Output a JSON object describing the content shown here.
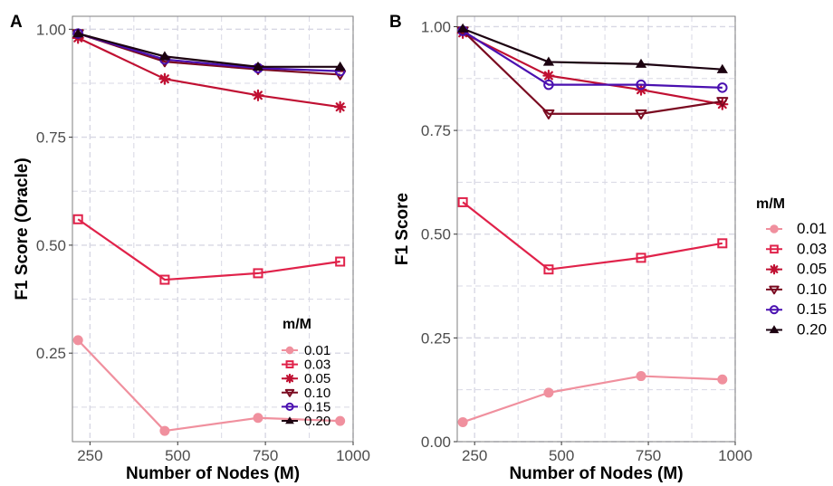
{
  "colors": {
    "0.01": "#f0909e",
    "0.03": "#e0224a",
    "0.05": "#c01032",
    "0.10": "#7a0a20",
    "0.15": "#4a10b0",
    "0.20": "#1c0210",
    "grid": "#d8d8e4",
    "panel_border": "#7f7f7f"
  },
  "chart_data": [
    {
      "type": "line",
      "panel_label": "A",
      "xlabel": "Number of Nodes (M)",
      "ylabel": "F1 Score (Oracle)",
      "xlim": [
        200,
        1000
      ],
      "ylim": [
        0.045,
        1.03
      ],
      "x_ticks": [
        250,
        500,
        750,
        1000
      ],
      "x_tick_labels": [
        "250",
        "500",
        "750",
        "1000"
      ],
      "y_ticks": [
        0.25,
        0.5,
        0.75,
        1.0
      ],
      "y_tick_labels": [
        "0.25",
        "0.50",
        "0.75",
        "1.00"
      ],
      "grid": true,
      "legend_title": "m/M",
      "legend_position": "inside-bottom-right",
      "x": [
        216,
        463,
        729,
        963
      ],
      "series": [
        {
          "name": "0.01",
          "marker": "circle",
          "values": [
            0.28,
            0.07,
            0.1,
            0.093
          ]
        },
        {
          "name": "0.03",
          "marker": "square",
          "values": [
            0.56,
            0.42,
            0.435,
            0.462
          ]
        },
        {
          "name": "0.05",
          "marker": "asterisk",
          "values": [
            0.98,
            0.885,
            0.847,
            0.82
          ]
        },
        {
          "name": "0.10",
          "marker": "triangle-down",
          "values": [
            0.99,
            0.925,
            0.907,
            0.895
          ]
        },
        {
          "name": "0.15",
          "marker": "circle-open",
          "values": [
            0.99,
            0.93,
            0.91,
            0.903
          ]
        },
        {
          "name": "0.20",
          "marker": "triangle-up",
          "values": [
            0.99,
            0.937,
            0.913,
            0.913
          ]
        }
      ]
    },
    {
      "type": "line",
      "panel_label": "B",
      "xlabel": "Number of Nodes (M)",
      "ylabel": "F1 Score",
      "xlim": [
        200,
        1000
      ],
      "ylim": [
        0.0,
        1.025
      ],
      "x_ticks": [
        250,
        500,
        750,
        1000
      ],
      "x_tick_labels": [
        "250",
        "500",
        "750",
        "1000"
      ],
      "y_ticks": [
        0.0,
        0.25,
        0.5,
        0.75,
        1.0
      ],
      "y_tick_labels": [
        "0.00",
        "0.25",
        "0.50",
        "0.75",
        "1.00"
      ],
      "grid": true,
      "legend_title": "m/M",
      "legend_position": "right",
      "x": [
        216,
        463,
        729,
        963
      ],
      "series": [
        {
          "name": "0.01",
          "marker": "circle",
          "values": [
            0.047,
            0.118,
            0.158,
            0.15
          ]
        },
        {
          "name": "0.03",
          "marker": "square",
          "values": [
            0.577,
            0.415,
            0.443,
            0.478
          ]
        },
        {
          "name": "0.05",
          "marker": "asterisk",
          "values": [
            0.985,
            0.882,
            0.848,
            0.813
          ]
        },
        {
          "name": "0.10",
          "marker": "triangle-down",
          "values": [
            0.99,
            0.79,
            0.79,
            0.82
          ]
        },
        {
          "name": "0.15",
          "marker": "circle-open",
          "values": [
            0.99,
            0.86,
            0.86,
            0.853
          ]
        },
        {
          "name": "0.20",
          "marker": "triangle-up",
          "values": [
            0.995,
            0.915,
            0.91,
            0.897
          ]
        }
      ]
    }
  ]
}
